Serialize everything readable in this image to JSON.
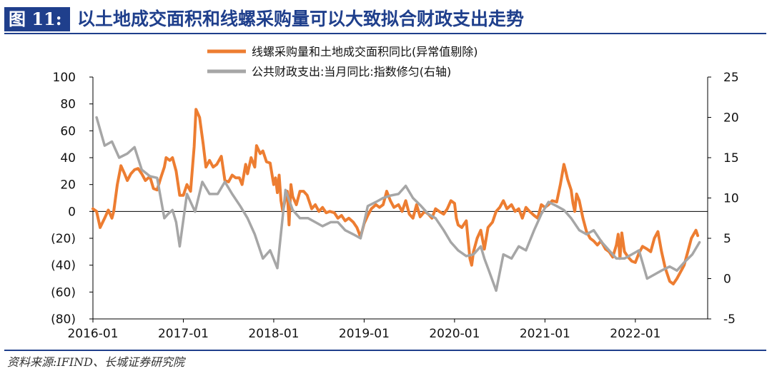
{
  "header": {
    "figure_number": "图 11:",
    "title": "以土地成交面积和线螺采购量可以大致拟合财政支出走势"
  },
  "source": "资料来源:IFIND、长城证券研究院",
  "colors": {
    "primary": "#1f3f8c",
    "orange": "#ed7d31",
    "gray": "#a6a6a6",
    "negative": "#e00000"
  },
  "chart_data": {
    "type": "line",
    "legend": [
      {
        "name": "线螺采购量和土地成交面积同比(异常值剔除)",
        "color": "#ed7d31",
        "axis": "left"
      },
      {
        "name": "公共财政支出:当月同比:指数修匀(右轴)",
        "color": "#a6a6a6",
        "axis": "right"
      }
    ],
    "x_ticks": [
      "2016-01",
      "2017-01",
      "2018-01",
      "2019-01",
      "2020-01",
      "2021-01",
      "2022-01"
    ],
    "x_domain": [
      2016.0,
      2022.8
    ],
    "y_left": {
      "range": [
        -80,
        100
      ],
      "ticks": [
        "100",
        "80",
        "60",
        "40",
        "20",
        "0",
        "(20)",
        "(40)",
        "(60)",
        "(80)"
      ]
    },
    "y_right": {
      "range": [
        -5,
        25
      ],
      "ticks": [
        "25",
        "20",
        "15",
        "10",
        "5",
        "0",
        "-5"
      ]
    },
    "series": [
      {
        "name": "线螺采购量和土地成交面积同比(异常值剔除)",
        "axis": "left",
        "color": "#ed7d31",
        "points": [
          [
            2016.0,
            2
          ],
          [
            2016.04,
            0
          ],
          [
            2016.08,
            -12
          ],
          [
            2016.13,
            -5
          ],
          [
            2016.17,
            1
          ],
          [
            2016.21,
            -5
          ],
          [
            2016.23,
            0
          ],
          [
            2016.27,
            20
          ],
          [
            2016.31,
            34
          ],
          [
            2016.35,
            28
          ],
          [
            2016.38,
            23
          ],
          [
            2016.42,
            28
          ],
          [
            2016.46,
            31
          ],
          [
            2016.5,
            32
          ],
          [
            2016.54,
            28
          ],
          [
            2016.58,
            23
          ],
          [
            2016.63,
            26
          ],
          [
            2016.67,
            17
          ],
          [
            2016.71,
            16
          ],
          [
            2016.75,
            25
          ],
          [
            2016.79,
            33
          ],
          [
            2016.81,
            40
          ],
          [
            2016.85,
            38
          ],
          [
            2016.88,
            40
          ],
          [
            2016.92,
            30
          ],
          [
            2016.96,
            12
          ],
          [
            2017.0,
            12
          ],
          [
            2017.04,
            20
          ],
          [
            2017.08,
            15
          ],
          [
            2017.12,
            48
          ],
          [
            2017.14,
            76
          ],
          [
            2017.18,
            70
          ],
          [
            2017.22,
            50
          ],
          [
            2017.25,
            33
          ],
          [
            2017.29,
            38
          ],
          [
            2017.33,
            33
          ],
          [
            2017.37,
            35
          ],
          [
            2017.42,
            41
          ],
          [
            2017.46,
            23
          ],
          [
            2017.5,
            22
          ],
          [
            2017.54,
            27
          ],
          [
            2017.58,
            25
          ],
          [
            2017.62,
            25
          ],
          [
            2017.65,
            20
          ],
          [
            2017.69,
            35
          ],
          [
            2017.71,
            28
          ],
          [
            2017.75,
            40
          ],
          [
            2017.79,
            33
          ],
          [
            2017.81,
            49
          ],
          [
            2017.85,
            43
          ],
          [
            2017.88,
            45
          ],
          [
            2017.92,
            37
          ],
          [
            2017.96,
            36
          ],
          [
            2018.0,
            20
          ],
          [
            2018.02,
            25
          ],
          [
            2018.04,
            14
          ],
          [
            2018.06,
            27
          ],
          [
            2018.08,
            8
          ],
          [
            2018.1,
            0
          ],
          [
            2018.13,
            10
          ],
          [
            2018.15,
            15
          ],
          [
            2018.17,
            -10
          ],
          [
            2018.19,
            20
          ],
          [
            2018.21,
            11
          ],
          [
            2018.25,
            5
          ],
          [
            2018.29,
            15
          ],
          [
            2018.33,
            15
          ],
          [
            2018.37,
            12
          ],
          [
            2018.42,
            2
          ],
          [
            2018.46,
            5
          ],
          [
            2018.5,
            0
          ],
          [
            2018.54,
            3
          ],
          [
            2018.58,
            -1
          ],
          [
            2018.62,
            0
          ],
          [
            2018.67,
            -1
          ],
          [
            2018.71,
            -5
          ],
          [
            2018.75,
            -3
          ],
          [
            2018.79,
            -7
          ],
          [
            2018.83,
            -5
          ],
          [
            2018.88,
            -8
          ],
          [
            2018.92,
            -12
          ],
          [
            2018.96,
            -19
          ],
          [
            2019.0,
            -9
          ],
          [
            2019.04,
            -3
          ],
          [
            2019.08,
            2
          ],
          [
            2019.13,
            5
          ],
          [
            2019.17,
            3
          ],
          [
            2019.21,
            5
          ],
          [
            2019.25,
            15
          ],
          [
            2019.29,
            8
          ],
          [
            2019.33,
            3
          ],
          [
            2019.38,
            5
          ],
          [
            2019.42,
            0
          ],
          [
            2019.46,
            8
          ],
          [
            2019.5,
            -2
          ],
          [
            2019.54,
            -5
          ],
          [
            2019.58,
            5
          ],
          [
            2019.62,
            -4
          ],
          [
            2019.67,
            0
          ],
          [
            2019.71,
            -2
          ],
          [
            2019.75,
            -5
          ],
          [
            2019.79,
            2
          ],
          [
            2019.83,
            0
          ],
          [
            2019.88,
            -2
          ],
          [
            2019.92,
            2
          ],
          [
            2019.96,
            8
          ],
          [
            2020.0,
            6
          ],
          [
            2020.02,
            -5
          ],
          [
            2020.04,
            -10
          ],
          [
            2020.08,
            -12
          ],
          [
            2020.13,
            -7
          ],
          [
            2020.17,
            -35
          ],
          [
            2020.19,
            -40
          ],
          [
            2020.21,
            -30
          ],
          [
            2020.25,
            -20
          ],
          [
            2020.29,
            -14
          ],
          [
            2020.33,
            -28
          ],
          [
            2020.37,
            -12
          ],
          [
            2020.42,
            -8
          ],
          [
            2020.46,
            0
          ],
          [
            2020.5,
            3
          ],
          [
            2020.54,
            8
          ],
          [
            2020.58,
            2
          ],
          [
            2020.63,
            5
          ],
          [
            2020.67,
            0
          ],
          [
            2020.71,
            2
          ],
          [
            2020.75,
            -5
          ],
          [
            2020.79,
            3
          ],
          [
            2020.83,
            0
          ],
          [
            2020.88,
            -3
          ],
          [
            2020.92,
            -5
          ],
          [
            2020.96,
            5
          ],
          [
            2021.0,
            3
          ],
          [
            2021.04,
            5
          ],
          [
            2021.08,
            8
          ],
          [
            2021.13,
            7
          ],
          [
            2021.17,
            20
          ],
          [
            2021.21,
            35
          ],
          [
            2021.23,
            30
          ],
          [
            2021.25,
            24
          ],
          [
            2021.29,
            16
          ],
          [
            2021.31,
            6
          ],
          [
            2021.33,
            0
          ],
          [
            2021.35,
            13
          ],
          [
            2021.38,
            8
          ],
          [
            2021.42,
            -5
          ],
          [
            2021.46,
            -15
          ],
          [
            2021.5,
            -20
          ],
          [
            2021.54,
            -22
          ],
          [
            2021.58,
            -25
          ],
          [
            2021.62,
            -22
          ],
          [
            2021.67,
            -28
          ],
          [
            2021.71,
            -30
          ],
          [
            2021.75,
            -34
          ],
          [
            2021.79,
            -25
          ],
          [
            2021.81,
            -17
          ],
          [
            2021.83,
            -35
          ],
          [
            2021.85,
            -16
          ],
          [
            2021.88,
            -30
          ],
          [
            2021.92,
            -34
          ],
          [
            2021.96,
            -37
          ],
          [
            2022.0,
            -38
          ],
          [
            2022.04,
            -31
          ],
          [
            2022.08,
            -26
          ],
          [
            2022.13,
            -28
          ],
          [
            2022.17,
            -30
          ],
          [
            2022.21,
            -20
          ],
          [
            2022.25,
            -15
          ],
          [
            2022.29,
            -30
          ],
          [
            2022.33,
            -42
          ],
          [
            2022.38,
            -52
          ],
          [
            2022.42,
            -54
          ],
          [
            2022.46,
            -50
          ],
          [
            2022.5,
            -45
          ],
          [
            2022.54,
            -40
          ],
          [
            2022.58,
            -30
          ],
          [
            2022.62,
            -20
          ],
          [
            2022.67,
            -14
          ],
          [
            2022.69,
            -18
          ]
        ]
      },
      {
        "name": "公共财政支出:当月同比:指数修匀(右轴)",
        "axis": "right",
        "color": "#a6a6a6",
        "points": [
          [
            2016.04,
            20
          ],
          [
            2016.13,
            16.5
          ],
          [
            2016.21,
            17
          ],
          [
            2016.29,
            15
          ],
          [
            2016.38,
            15.5
          ],
          [
            2016.46,
            16.3
          ],
          [
            2016.54,
            13.5
          ],
          [
            2016.63,
            12.7
          ],
          [
            2016.71,
            12.5
          ],
          [
            2016.79,
            7.5
          ],
          [
            2016.83,
            8
          ],
          [
            2016.88,
            8.5
          ],
          [
            2016.92,
            7
          ],
          [
            2016.96,
            4
          ],
          [
            2017.04,
            10.5
          ],
          [
            2017.13,
            8.3
          ],
          [
            2017.21,
            12
          ],
          [
            2017.29,
            10.5
          ],
          [
            2017.38,
            10.5
          ],
          [
            2017.46,
            12
          ],
          [
            2017.54,
            10.5
          ],
          [
            2017.63,
            9
          ],
          [
            2017.71,
            7.5
          ],
          [
            2017.79,
            5.5
          ],
          [
            2017.88,
            2.5
          ],
          [
            2017.96,
            3.5
          ],
          [
            2018.04,
            1.3
          ],
          [
            2018.13,
            11
          ],
          [
            2018.21,
            8.5
          ],
          [
            2018.29,
            7.5
          ],
          [
            2018.38,
            7.5
          ],
          [
            2018.46,
            7
          ],
          [
            2018.54,
            6.5
          ],
          [
            2018.63,
            7
          ],
          [
            2018.71,
            7
          ],
          [
            2018.79,
            6
          ],
          [
            2018.88,
            5.5
          ],
          [
            2018.96,
            5
          ],
          [
            2019.04,
            9
          ],
          [
            2019.13,
            9.5
          ],
          [
            2019.21,
            10
          ],
          [
            2019.29,
            10.3
          ],
          [
            2019.38,
            10.5
          ],
          [
            2019.46,
            11.5
          ],
          [
            2019.54,
            10
          ],
          [
            2019.63,
            9
          ],
          [
            2019.71,
            8
          ],
          [
            2019.79,
            7.5
          ],
          [
            2019.88,
            6
          ],
          [
            2019.96,
            4.5
          ],
          [
            2020.04,
            3.5
          ],
          [
            2020.13,
            2.8
          ],
          [
            2020.21,
            3
          ],
          [
            2020.29,
            4
          ],
          [
            2020.33,
            2.5
          ],
          [
            2020.38,
            1
          ],
          [
            2020.46,
            -1.5
          ],
          [
            2020.54,
            3
          ],
          [
            2020.63,
            2.5
          ],
          [
            2020.71,
            4
          ],
          [
            2020.79,
            3.5
          ],
          [
            2020.88,
            6
          ],
          [
            2020.96,
            8
          ],
          [
            2021.04,
            9.5
          ],
          [
            2021.13,
            9
          ],
          [
            2021.21,
            8.5
          ],
          [
            2021.29,
            7.5
          ],
          [
            2021.38,
            6
          ],
          [
            2021.46,
            5.5
          ],
          [
            2021.54,
            6
          ],
          [
            2021.63,
            4.5
          ],
          [
            2021.71,
            3.5
          ],
          [
            2021.79,
            2.5
          ],
          [
            2021.88,
            2.5
          ],
          [
            2021.96,
            3
          ],
          [
            2022.04,
            3.5
          ],
          [
            2022.13,
            0
          ],
          [
            2022.21,
            0.5
          ],
          [
            2022.29,
            1
          ],
          [
            2022.38,
            1.5
          ],
          [
            2022.46,
            1
          ],
          [
            2022.54,
            2
          ],
          [
            2022.63,
            3
          ],
          [
            2022.71,
            4.5
          ]
        ]
      }
    ]
  }
}
